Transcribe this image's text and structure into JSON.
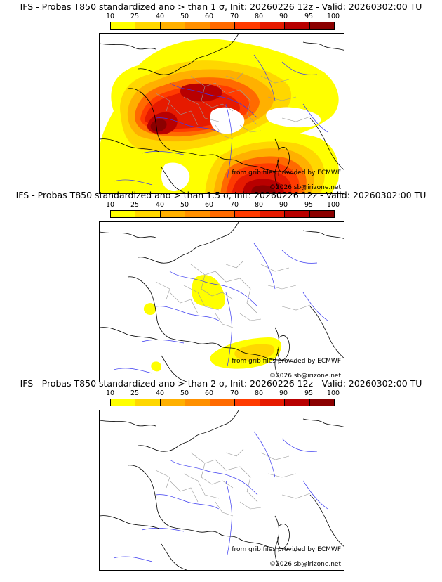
{
  "legend": {
    "ticks": [
      "10",
      "25",
      "40",
      "50",
      "60",
      "70",
      "80",
      "90",
      "95",
      "100"
    ],
    "colors": [
      "#ffff00",
      "#ffd700",
      "#ffb000",
      "#ff9000",
      "#ff6a00",
      "#ff3b00",
      "#e61a00",
      "#b80000",
      "#8b0000",
      "#4a0000"
    ]
  },
  "panels": [
    {
      "title": "IFS - Probas T850  standardized ano > than 1 σ, Init: 20260226 12z - Valid: 20260302:00 TU"
    },
    {
      "title": "IFS - Probas T850  standardized ano > than 1.5 σ, Init: 20260226 12z - Valid: 20260302:00 TU"
    },
    {
      "title": "IFS - Probas T850  standardized ano > than 2 σ, Init: 20260226 12z - Valid: 20260302:00 TU"
    }
  ],
  "credits": {
    "grib": "from grib files provided by ECMWF",
    "copyright": "©2026 sb@irizone.net"
  },
  "map_style": {
    "coastline_color": "#000000",
    "river_color": "#3a3af0",
    "border_color": "#9a9a9a"
  }
}
